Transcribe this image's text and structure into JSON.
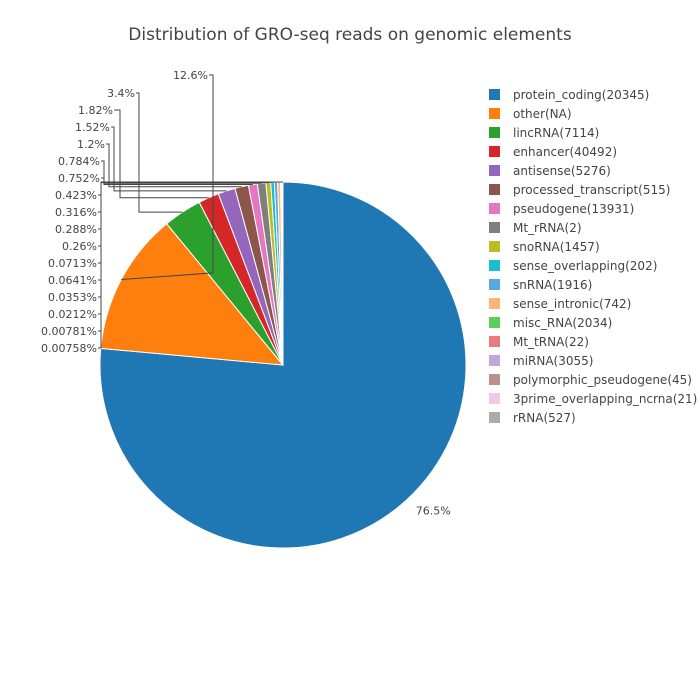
{
  "chart_data": {
    "type": "pie",
    "title": "Distribution of GRO-seq reads on genomic elements",
    "direction": "clockwise",
    "legend_position": "right",
    "series": [
      {
        "name": "protein_coding(20345)",
        "value": 76.5,
        "label": "76.5%",
        "color": "#1f77b4"
      },
      {
        "name": "other(NA)",
        "value": 12.6,
        "label": "12.6%",
        "color": "#ff7f0e"
      },
      {
        "name": "lincRNA(7114)",
        "value": 3.4,
        "label": "3.4%",
        "color": "#2ca02c"
      },
      {
        "name": "enhancer(40492)",
        "value": 1.82,
        "label": "1.82%",
        "color": "#d62728"
      },
      {
        "name": "antisense(5276)",
        "value": 1.52,
        "label": "1.52%",
        "color": "#9467bd"
      },
      {
        "name": "processed_transcript(515)",
        "value": 1.2,
        "label": "1.2%",
        "color": "#8c564b"
      },
      {
        "name": "pseudogene(13931)",
        "value": 0.784,
        "label": "0.784%",
        "color": "#e377c2"
      },
      {
        "name": "Mt_rRNA(2)",
        "value": 0.752,
        "label": "0.752%",
        "color": "#7f7f7f"
      },
      {
        "name": "snoRNA(1457)",
        "value": 0.423,
        "label": "0.423%",
        "color": "#bcbd22"
      },
      {
        "name": "sense_overlapping(202)",
        "value": 0.316,
        "label": "0.316%",
        "color": "#17becf"
      },
      {
        "name": "snRNA(1916)",
        "value": 0.288,
        "label": "0.288%",
        "color": "#56a8e3"
      },
      {
        "name": "sense_intronic(742)",
        "value": 0.26,
        "label": "0.26%",
        "color": "#ffb476"
      },
      {
        "name": "misc_RNA(2034)",
        "value": 0.0713,
        "label": "0.0713%",
        "color": "#5ad05a"
      },
      {
        "name": "Mt_tRNA(22)",
        "value": 0.0641,
        "label": "0.0641%",
        "color": "#e87c7c"
      },
      {
        "name": "miRNA(3055)",
        "value": 0.0353,
        "label": "0.0353%",
        "color": "#c0a6da"
      },
      {
        "name": "polymorphic_pseudogene(45)",
        "value": 0.0212,
        "label": "0.0212%",
        "color": "#b9928b"
      },
      {
        "name": "3prime_overlapping_ncrna(21)",
        "value": 0.00781,
        "label": "0.00781%",
        "color": "#f4c6e6"
      },
      {
        "name": "rRNA(527)",
        "value": 0.00758,
        "label": "0.00758%",
        "color": "#ababab"
      }
    ]
  }
}
